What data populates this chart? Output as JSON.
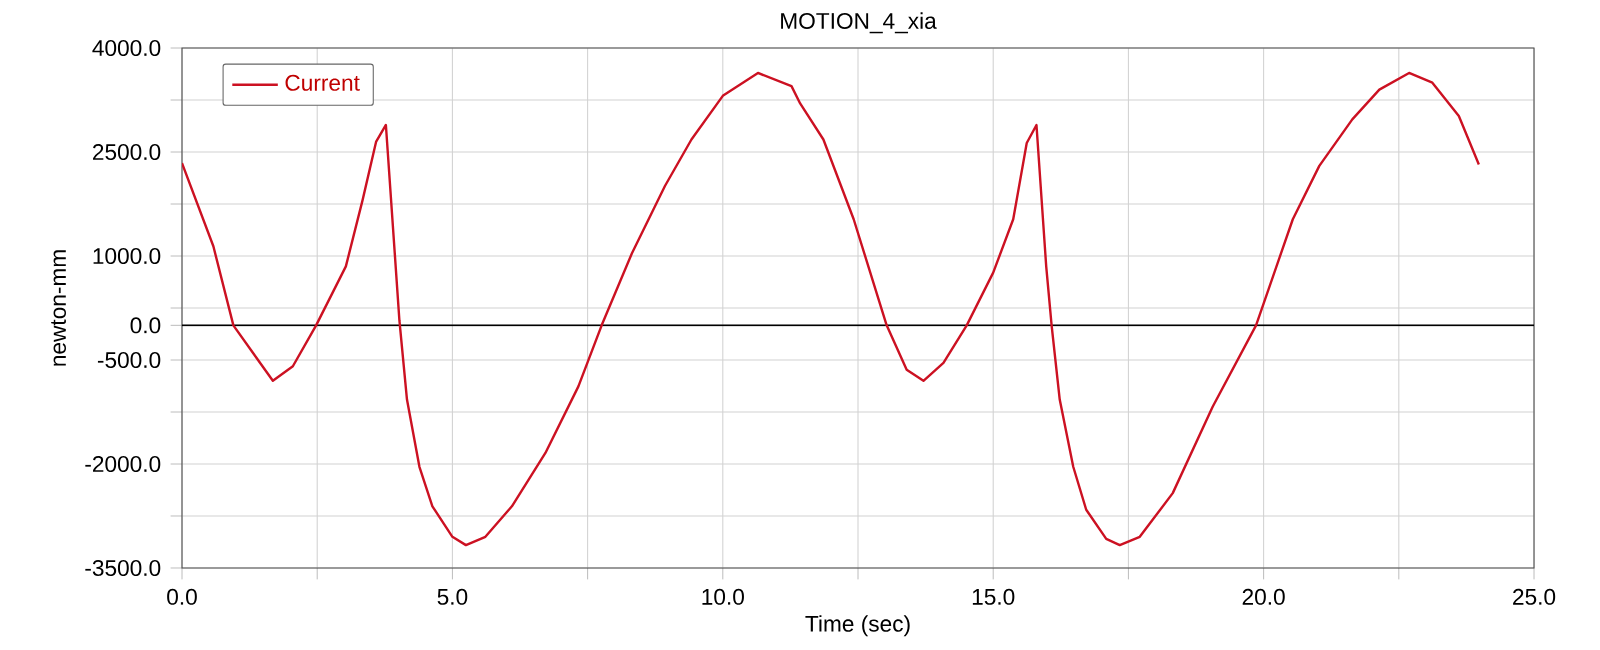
{
  "chart_data": {
    "type": "line",
    "title": "MOTION_4_xia",
    "xlabel": "Time (sec)",
    "ylabel": "newton-mm",
    "xlim": [
      0,
      25
    ],
    "ylim": [
      -3500,
      4000
    ],
    "xticks": [
      {
        "value": 0,
        "label": "0.0"
      },
      {
        "value": 2.5,
        "label": null
      },
      {
        "value": 5,
        "label": "5.0"
      },
      {
        "value": 7.5,
        "label": null
      },
      {
        "value": 10,
        "label": "10.0"
      },
      {
        "value": 12.5,
        "label": null
      },
      {
        "value": 15,
        "label": "15.0"
      },
      {
        "value": 17.5,
        "label": null
      },
      {
        "value": 20,
        "label": "20.0"
      },
      {
        "value": 22.5,
        "label": null
      },
      {
        "value": 25,
        "label": "25.0"
      }
    ],
    "yticks": [
      {
        "value": -3500,
        "label": "-3500.0"
      },
      {
        "value": -2750,
        "label": null
      },
      {
        "value": -2000,
        "label": "-2000.0"
      },
      {
        "value": -1250,
        "label": null
      },
      {
        "value": -500,
        "label": "-500.0"
      },
      {
        "value": 0,
        "label": "0.0"
      },
      {
        "value": 250,
        "label": null
      },
      {
        "value": 1000,
        "label": "1000.0"
      },
      {
        "value": 1750,
        "label": null
      },
      {
        "value": 2500,
        "label": "2500.0"
      },
      {
        "value": 3250,
        "label": null
      },
      {
        "value": 4000,
        "label": "4000.0"
      }
    ],
    "grid": true,
    "legend": "top left",
    "ref_lines": [
      {
        "axis": "y",
        "value": 0,
        "color": "#000000"
      }
    ],
    "series": [
      {
        "name": "Current",
        "color": "#cc1122",
        "x": [
          0,
          0.58,
          0.95,
          1.68,
          2.05,
          2.48,
          3.03,
          3.34,
          3.59,
          3.77,
          4.02,
          4.16,
          4.39,
          4.63,
          5.0,
          5.25,
          5.61,
          6.1,
          6.72,
          7.33,
          7.76,
          8.32,
          8.93,
          9.42,
          10.0,
          10.65,
          11.27,
          11.43,
          11.86,
          12.42,
          13.03,
          13.4,
          13.71,
          14.08,
          14.51,
          15.0,
          15.37,
          15.62,
          15.8,
          15.98,
          16.08,
          16.23,
          16.48,
          16.72,
          17.09,
          17.34,
          17.71,
          18.32,
          19.06,
          19.86,
          20.54,
          21.03,
          21.64,
          22.14,
          22.69,
          23.12,
          23.61,
          23.98
        ],
        "values": [
          2340,
          1140,
          0,
          -800,
          -590,
          0,
          850,
          1810,
          2650,
          2890,
          70,
          -1070,
          -2040,
          -2610,
          -3050,
          -3170,
          -3050,
          -2610,
          -1840,
          -880,
          0,
          1040,
          2010,
          2680,
          3310,
          3640,
          3450,
          3200,
          2680,
          1530,
          0,
          -640,
          -800,
          -540,
          0,
          760,
          1530,
          2630,
          2890,
          850,
          0,
          -1070,
          -2040,
          -2660,
          -3080,
          -3170,
          -3050,
          -2420,
          -1170,
          0,
          1530,
          2300,
          2970,
          3400,
          3640,
          3500,
          3020,
          2320
        ]
      }
    ]
  }
}
